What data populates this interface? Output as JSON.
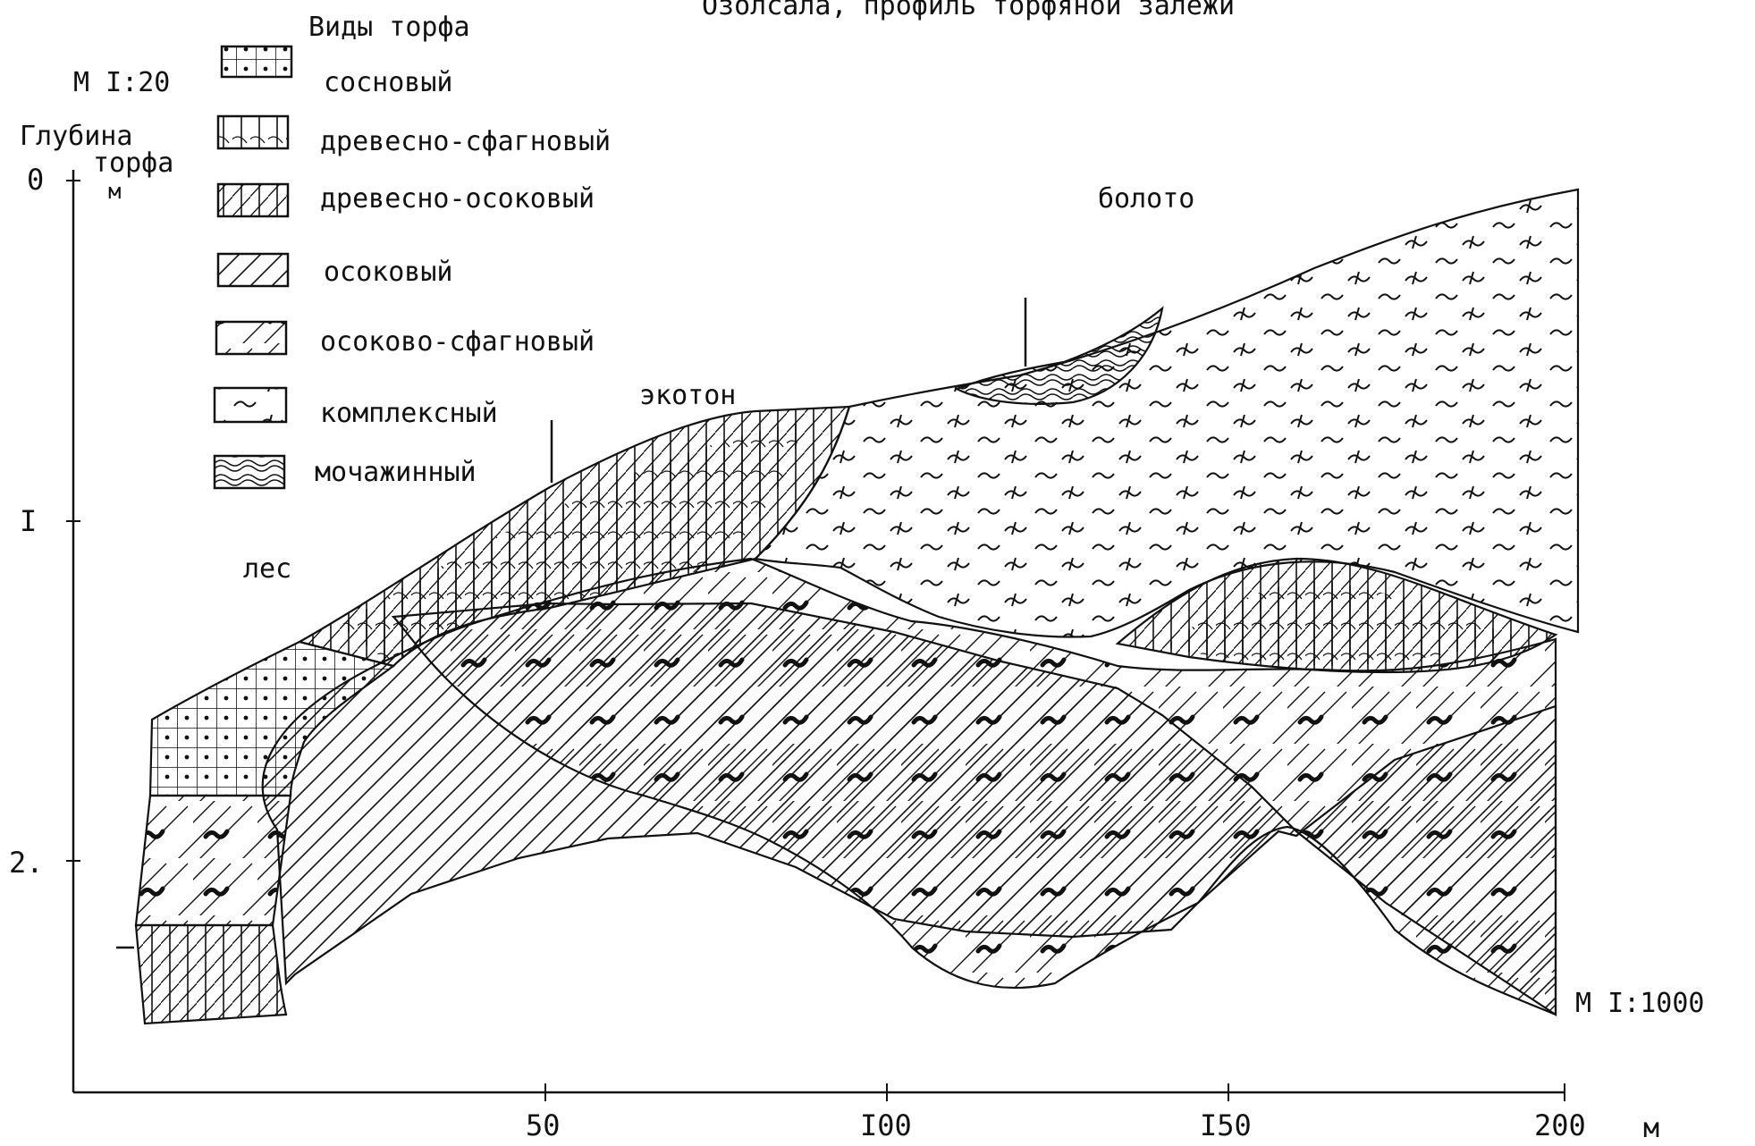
{
  "title": "Озолсала, профиль торфяной залежи",
  "scale_vertical": "М I:20",
  "scale_horizontal": "М I:1000",
  "y_axis": {
    "title_line1": "Глубина",
    "title_line2": "торфа",
    "unit": "м",
    "ticks": [
      "0",
      "I",
      "2."
    ]
  },
  "x_axis": {
    "ticks": [
      "50",
      "I00",
      "I50",
      "200"
    ],
    "unit": "м"
  },
  "legend": {
    "title": "Виды торфа",
    "items": [
      {
        "label": "сосновый",
        "pattern": "pine"
      },
      {
        "label": "древесно-сфагновый",
        "pattern": "wood-sphagnum"
      },
      {
        "label": "древесно-осоковый",
        "pattern": "wood-sedge"
      },
      {
        "label": "осоковый",
        "pattern": "sedge"
      },
      {
        "label": "осоково-сфагновый",
        "pattern": "sedge-sphagnum"
      },
      {
        "label": "комплексный",
        "pattern": "complex"
      },
      {
        "label": "мочажинный",
        "pattern": "hollow"
      }
    ]
  },
  "zones": {
    "forest": "лес",
    "ecotone": "экотон",
    "bog": "болото"
  },
  "colors": {
    "ink": "#111111",
    "paper": "#ffffff"
  }
}
